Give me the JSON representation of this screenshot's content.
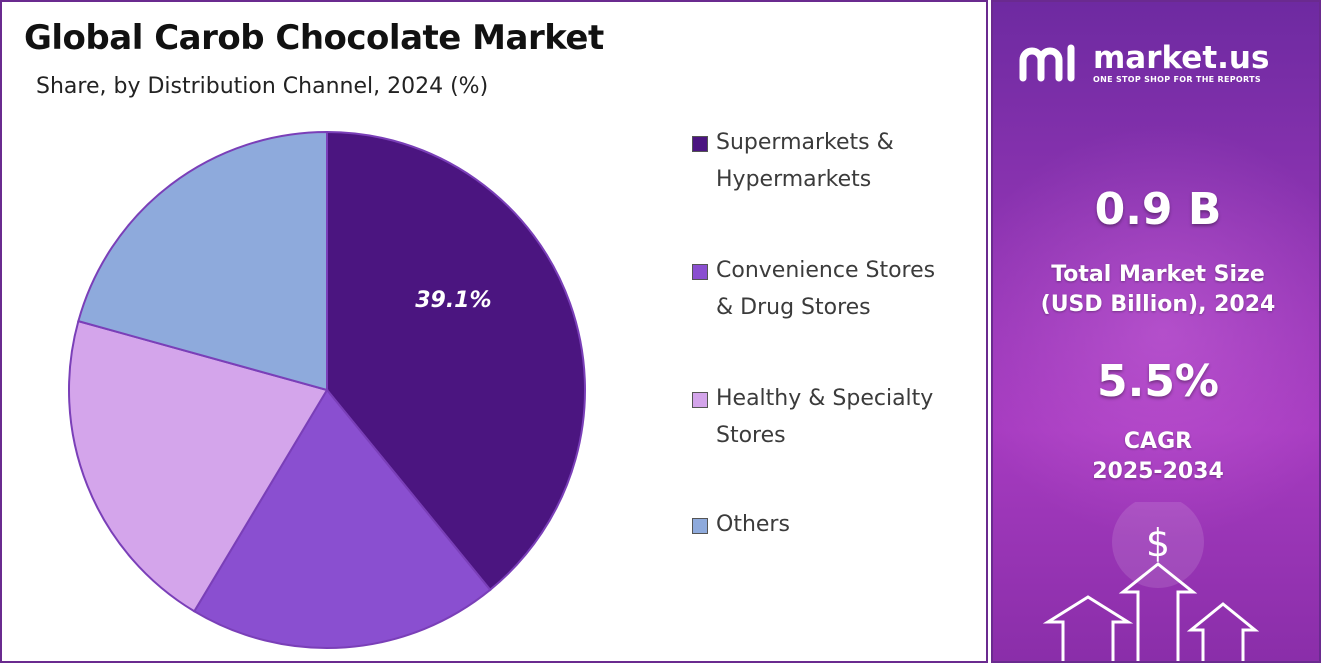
{
  "chart_data": {
    "type": "pie",
    "title": "Global Carob Chocolate Market",
    "subtitle": "Share, by Distribution Channel, 2024 (%)",
    "categories": [
      "Supermarkets & Hypermarkets",
      "Convenience Stores & Drug Stores",
      "Healthy & Specialty Stores",
      "Others"
    ],
    "legend_lines": [
      [
        "Supermarkets &",
        "Hypermarkets"
      ],
      [
        "Convenience Stores",
        "& Drug Stores"
      ],
      [
        "Healthy & Specialty",
        "Stores"
      ],
      [
        "Others"
      ]
    ],
    "values": [
      39.1,
      19.5,
      20.7,
      20.7
    ],
    "colors": [
      "#4b1580",
      "#8a4fd0",
      "#d4a5eb",
      "#8eaadc"
    ],
    "data_labels": [
      "39.1%",
      "",
      "",
      ""
    ],
    "legend_position": "right"
  },
  "sidebar": {
    "brand_name": "market.us",
    "brand_tagline": "ONE STOP SHOP FOR THE REPORTS",
    "market_size_value": "0.9 B",
    "market_size_label": [
      "Total Market Size",
      "(USD Billion), 2024"
    ],
    "cagr_value": "5.5%",
    "cagr_label": [
      "CAGR",
      "2025-2034"
    ],
    "deco_icon": "dollar-growth-arrows-icon",
    "deco_symbol": "$"
  }
}
